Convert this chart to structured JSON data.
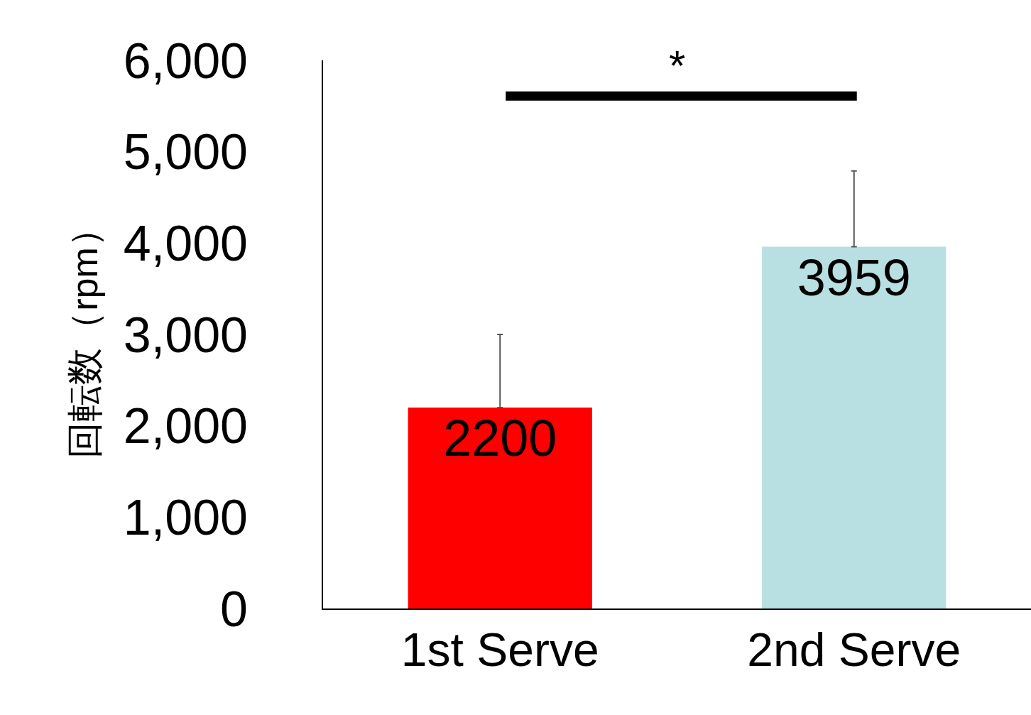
{
  "chart_data": {
    "type": "bar",
    "ylabel": "回転数（rpm）",
    "categories": [
      "1st Serve",
      "2nd Serve"
    ],
    "values": [
      2200,
      3959
    ],
    "colors": [
      "#ff0000",
      "#b8dfe1"
    ],
    "errors": [
      [
        2200,
        3000
      ],
      [
        3959,
        4790
      ]
    ],
    "data_labels": true,
    "ylim": [
      0,
      6000
    ],
    "yticks": [
      {
        "value": 0,
        "label": "0"
      },
      {
        "value": 1000,
        "label": "1,000"
      },
      {
        "value": 2000,
        "label": "2,000"
      },
      {
        "value": 3000,
        "label": "3,000"
      },
      {
        "value": 4000,
        "label": "4,000"
      },
      {
        "value": 5000,
        "label": "5,000"
      },
      {
        "value": 6000,
        "label": "6,000"
      }
    ],
    "legend": false,
    "annotations": [
      "*"
    ]
  }
}
